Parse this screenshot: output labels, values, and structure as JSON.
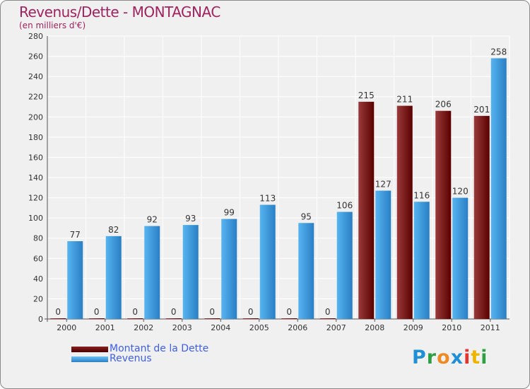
{
  "title": "Revenus/Dette - MONTAGNAC",
  "subtitle": "(en milliers d'€)",
  "logo": {
    "letters": [
      "P",
      "r",
      "o",
      "x",
      "i",
      "t",
      "i"
    ],
    "colors": [
      "#1f8fd6",
      "#2ea043",
      "#f08a24",
      "#1f8fd6",
      "#e3342f",
      "#f0b400",
      "#2ea043"
    ]
  },
  "legend": [
    {
      "label": "Montant de la Dette",
      "color": "#6b0000"
    },
    {
      "label": "Revenus",
      "color": "#3a9ce0"
    }
  ],
  "chart_data": {
    "type": "bar",
    "title": "Revenus/Dette - MONTAGNAC",
    "subtitle": "(en milliers d'€)",
    "categories": [
      "2000",
      "2001",
      "2002",
      "2003",
      "2004",
      "2005",
      "2006",
      "2007",
      "2008",
      "2009",
      "2010",
      "2011"
    ],
    "series": [
      {
        "name": "Montant de la Dette",
        "color": "#6b0000",
        "values": [
          0,
          0,
          0,
          0,
          0,
          0,
          0,
          0,
          215,
          211,
          206,
          201
        ]
      },
      {
        "name": "Revenus",
        "color": "#3a9ce0",
        "values": [
          77,
          82,
          92,
          93,
          99,
          113,
          95,
          106,
          127,
          116,
          120,
          258
        ]
      }
    ],
    "ylim": [
      0,
      280
    ],
    "yticks": [
      0,
      20,
      40,
      60,
      80,
      100,
      120,
      140,
      160,
      180,
      200,
      220,
      240,
      260,
      280
    ],
    "grid": true,
    "legend_position": "bottom-left",
    "xlabel": "",
    "ylabel": ""
  }
}
